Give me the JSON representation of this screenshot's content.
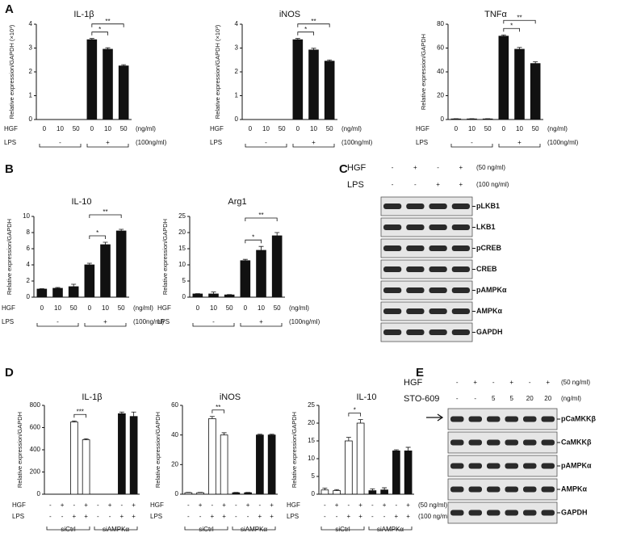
{
  "panel_labels": [
    "A",
    "B",
    "C",
    "D",
    "E"
  ],
  "chart_data": [
    {
      "type": "bar",
      "title": "IL-1β",
      "y_label": "Relative expression/GAPDH (×10³)",
      "categories": [
        "0",
        "10",
        "50",
        "0",
        "10",
        "50"
      ],
      "values": [
        0,
        0,
        0,
        3.35,
        2.95,
        2.25
      ],
      "errors": [
        0,
        0,
        0,
        0.05,
        0.06,
        0.05
      ],
      "color": "#111111",
      "ylim": [
        0,
        4
      ],
      "yticks": [
        0,
        1,
        2,
        3,
        4
      ],
      "row_labels": [
        "HGF",
        "LPS"
      ],
      "lps": [
        "-",
        "+"
      ],
      "hgf_unit": "(ng/ml)",
      "lps_unit": "(100ng/ml)",
      "significance": [
        {
          "label": "*",
          "from": 3,
          "to": 4
        },
        {
          "label": "**",
          "from": 3,
          "to": 5
        }
      ]
    },
    {
      "type": "bar",
      "title": "iNOS",
      "y_label": "Relative expression/GAPDH (×10³)",
      "categories": [
        "0",
        "10",
        "50",
        "0",
        "10",
        "50"
      ],
      "values": [
        0,
        0,
        0,
        3.35,
        2.92,
        2.45
      ],
      "errors": [
        0,
        0,
        0,
        0.05,
        0.07,
        0.05
      ],
      "color": "#111111",
      "ylim": [
        0,
        4
      ],
      "yticks": [
        0,
        1,
        2,
        3,
        4
      ],
      "row_labels": [
        "HGF",
        "LPS"
      ],
      "lps": [
        "-",
        "+"
      ],
      "hgf_unit": "(ng/ml)",
      "lps_unit": "(100ng/ml)",
      "significance": [
        {
          "label": "*",
          "from": 3,
          "to": 4
        },
        {
          "label": "**",
          "from": 3,
          "to": 5
        }
      ]
    },
    {
      "type": "bar",
      "title": "TNFα",
      "y_label": "Relative expression/GAPDH",
      "categories": [
        "0",
        "10",
        "50",
        "0",
        "10",
        "50"
      ],
      "values": [
        0.5,
        0.5,
        0.5,
        70,
        59,
        47
      ],
      "errors": [
        0.2,
        0.2,
        0.2,
        1,
        1.5,
        1.5
      ],
      "color": "#111111",
      "ylim": [
        0,
        80
      ],
      "yticks": [
        0,
        20,
        40,
        60,
        80
      ],
      "row_labels": [
        "HGF",
        "LPS"
      ],
      "lps": [
        "-",
        "+"
      ],
      "hgf_unit": "(ng/ml)",
      "lps_unit": "(100ng/ml)",
      "significance": [
        {
          "label": "*",
          "from": 3,
          "to": 4
        },
        {
          "label": "**",
          "from": 3,
          "to": 5
        }
      ]
    },
    {
      "type": "bar",
      "title": "IL-10",
      "y_label": "Relative expression/GAPDH",
      "categories": [
        "0",
        "10",
        "50",
        "0",
        "10",
        "50"
      ],
      "values": [
        1,
        1.1,
        1.3,
        4,
        6.5,
        8.2
      ],
      "errors": [
        0.05,
        0.1,
        0.3,
        0.2,
        0.3,
        0.2
      ],
      "color": "#111111",
      "ylim": [
        0,
        10
      ],
      "yticks": [
        0,
        2,
        4,
        6,
        8,
        10
      ],
      "row_labels": [
        "HGF",
        "LPS"
      ],
      "lps": [
        "-",
        "+"
      ],
      "hgf_unit": "(ng/ml)",
      "lps_unit": "(100ng/ml)",
      "significance": [
        {
          "label": "*",
          "from": 3,
          "to": 4
        },
        {
          "label": "**",
          "from": 3,
          "to": 5
        }
      ]
    },
    {
      "type": "bar",
      "title": "Arg1",
      "y_label": "Relative expression/GAPDH",
      "categories": [
        "0",
        "10",
        "50",
        "0",
        "10",
        "50"
      ],
      "values": [
        1,
        1,
        0.7,
        11.3,
        14.5,
        19
      ],
      "errors": [
        0.1,
        0.6,
        0.1,
        0.4,
        1.2,
        1
      ],
      "color": "#111111",
      "ylim": [
        0,
        25
      ],
      "yticks": [
        0,
        5,
        10,
        15,
        20,
        25
      ],
      "row_labels": [
        "HGF",
        "LPS"
      ],
      "lps": [
        "-",
        "+"
      ],
      "hgf_unit": "(ng/ml)",
      "lps_unit": "(100ng/ml)",
      "significance": [
        {
          "label": "*",
          "from": 3,
          "to": 4
        },
        {
          "label": "**",
          "from": 3,
          "to": 5
        }
      ]
    },
    {
      "type": "bar",
      "title": "IL-1β",
      "y_label": "Relative expression/GAPDH",
      "categories": [
        "-",
        "+",
        "-",
        "+",
        "-",
        "+",
        "-",
        "+"
      ],
      "values": [
        0,
        0,
        650,
        490,
        0,
        0,
        725,
        700
      ],
      "errors": [
        0,
        0,
        10,
        10,
        0,
        0,
        15,
        40
      ],
      "colors": [
        "#ffffff",
        "#ffffff",
        "#ffffff",
        "#ffffff",
        "#111111",
        "#111111",
        "#111111",
        "#111111"
      ],
      "ylim": [
        0,
        800
      ],
      "yticks": [
        0,
        200,
        400,
        600,
        800
      ],
      "row_labels": [
        "HGF",
        "LPS"
      ],
      "lps": [
        "-",
        "-",
        "+",
        "+",
        "-",
        "-",
        "+",
        "+"
      ],
      "groups": [
        "siCtrl",
        "siAMPKα"
      ],
      "significance": [
        {
          "label": "***",
          "from": 2,
          "to": 3
        }
      ]
    },
    {
      "type": "bar",
      "title": "iNOS",
      "y_label": "Relative expression/GAPDH",
      "categories": [
        "-",
        "+",
        "-",
        "+",
        "-",
        "+",
        "-",
        "+"
      ],
      "values": [
        1,
        1,
        51,
        40,
        1,
        1,
        40,
        40
      ],
      "errors": [
        0.2,
        0.2,
        1.5,
        1.5,
        0.2,
        0.2,
        0.5,
        0.5
      ],
      "colors": [
        "#ffffff",
        "#ffffff",
        "#ffffff",
        "#ffffff",
        "#111111",
        "#111111",
        "#111111",
        "#111111"
      ],
      "ylim": [
        0,
        60
      ],
      "yticks": [
        0,
        20,
        40,
        60
      ],
      "row_labels": [
        "HGF",
        "LPS"
      ],
      "lps": [
        "-",
        "-",
        "+",
        "+",
        "-",
        "-",
        "+",
        "+"
      ],
      "groups": [
        "siCtrl",
        "siAMPKα"
      ],
      "significance": [
        {
          "label": "**",
          "from": 2,
          "to": 3
        }
      ]
    },
    {
      "type": "bar",
      "title": "IL-10",
      "y_label": "Relative expression/GAPDH",
      "categories": [
        "-",
        "+",
        "-",
        "+",
        "-",
        "+",
        "-",
        "+"
      ],
      "values": [
        1.2,
        1,
        15,
        20,
        1,
        1.2,
        12.2,
        12.2
      ],
      "errors": [
        0.5,
        0.3,
        1,
        1,
        0.5,
        0.6,
        0.3,
        1
      ],
      "colors": [
        "#ffffff",
        "#ffffff",
        "#ffffff",
        "#ffffff",
        "#111111",
        "#111111",
        "#111111",
        "#111111"
      ],
      "ylim": [
        0,
        25
      ],
      "yticks": [
        0,
        5,
        10,
        15,
        20,
        25
      ],
      "row_labels": [
        "HGF",
        "LPS"
      ],
      "lps": [
        "-",
        "-",
        "+",
        "+",
        "-",
        "-",
        "+",
        "+"
      ],
      "groups": [
        "siCtrl",
        "siAMPKα"
      ],
      "hgf_unit": "(50 ng/ml)",
      "lps_unit": "(100 ng/ml)",
      "significance": [
        {
          "label": "*",
          "from": 2,
          "to": 3
        }
      ]
    }
  ],
  "blots": [
    {
      "header_rows": [
        {
          "label": "HGF",
          "values": [
            "-",
            "+",
            "-",
            "+"
          ],
          "unit": "(50 ng/ml)"
        },
        {
          "label": "LPS",
          "values": [
            "-",
            "-",
            "+",
            "+"
          ],
          "unit": "(100 ng/ml)"
        }
      ],
      "bands": [
        "pLKB1",
        "LKB1",
        "pCREB",
        "CREB",
        "pAMPKα",
        "AMPKα",
        "GAPDH"
      ]
    },
    {
      "header_rows": [
        {
          "label": "HGF",
          "values": [
            "-",
            "+",
            "-",
            "+",
            "-",
            "+"
          ],
          "unit": "(50 ng/ml)"
        },
        {
          "label": "STO-609",
          "values": [
            "-",
            "-",
            "5",
            "5",
            "20",
            "20"
          ],
          "unit": "(ng/ml)"
        }
      ],
      "bands": [
        "pCaMKKβ",
        "CaMKKβ",
        "pAMPKα",
        "AMPKα",
        "GAPDH"
      ]
    }
  ]
}
